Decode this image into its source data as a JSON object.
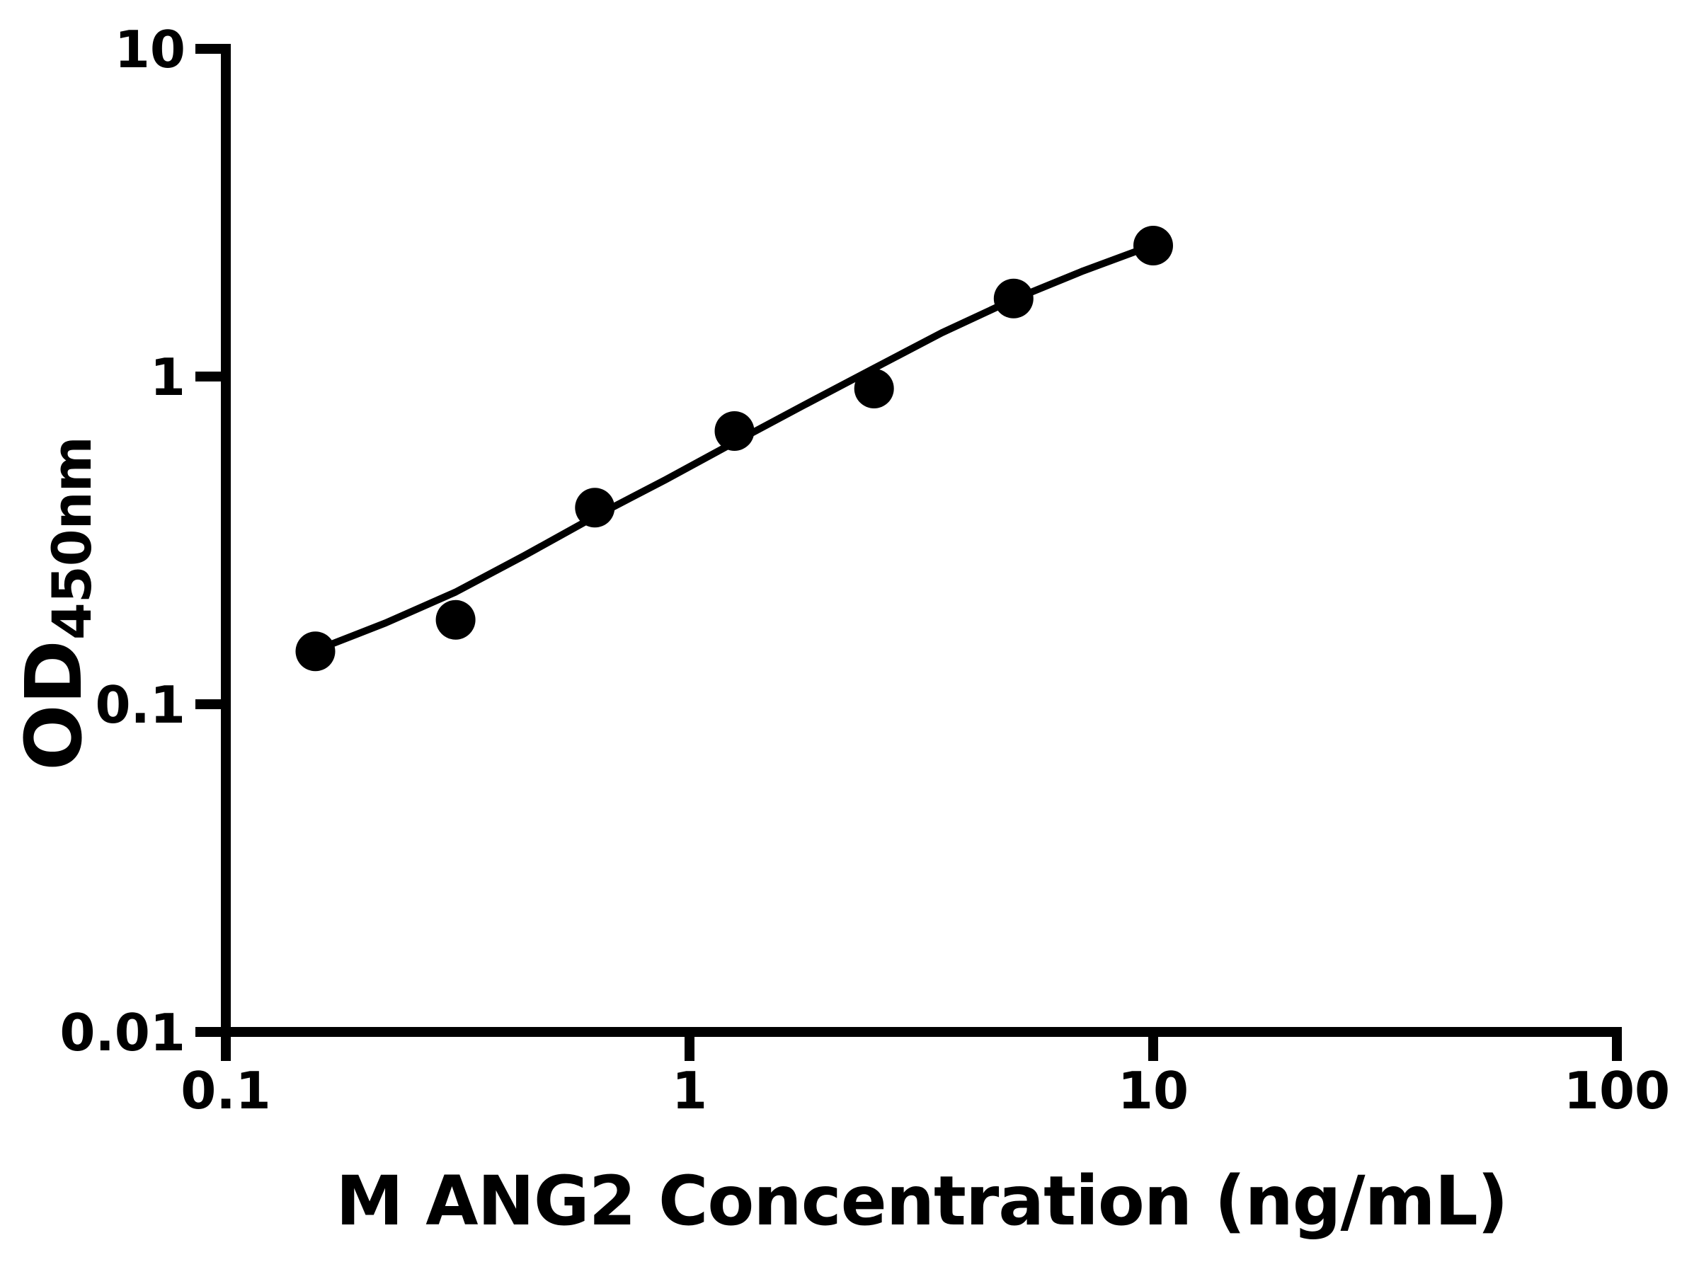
{
  "figure": {
    "background_color": "#ffffff",
    "foreground_color": "#000000"
  },
  "chart_data": {
    "type": "scatter",
    "title": "",
    "xlabel": "M ANG2 Concentration (ng/mL)",
    "ylabel": "OD450nm",
    "ylabel_parts": {
      "main": "OD",
      "subscript": "450nm"
    },
    "x_axis": {
      "scale": "log",
      "range": [
        0.1,
        100
      ],
      "ticks": [
        "0.1",
        "1",
        "10",
        "100"
      ]
    },
    "y_axis": {
      "scale": "log",
      "range": [
        0.01,
        10
      ],
      "ticks": [
        "0.01",
        "0.1",
        "1",
        "10"
      ]
    },
    "grid": false,
    "legend": false,
    "series": [
      {
        "name": "standard-data-points",
        "type": "scatter",
        "marker": "filled-circle",
        "color": "#000000",
        "points": [
          {
            "x": 0.156,
            "y": 0.145
          },
          {
            "x": 0.313,
            "y": 0.181
          },
          {
            "x": 0.625,
            "y": 0.398
          },
          {
            "x": 1.25,
            "y": 0.682
          },
          {
            "x": 2.5,
            "y": 0.919
          },
          {
            "x": 5,
            "y": 1.73
          },
          {
            "x": 10,
            "y": 2.51
          }
        ]
      },
      {
        "name": "fit-curve",
        "type": "line",
        "color": "#000000",
        "points": [
          {
            "x": 0.156,
            "y": 0.146
          },
          {
            "x": 0.221,
            "y": 0.177
          },
          {
            "x": 0.313,
            "y": 0.22
          },
          {
            "x": 0.44,
            "y": 0.284
          },
          {
            "x": 0.625,
            "y": 0.374
          },
          {
            "x": 0.887,
            "y": 0.484
          },
          {
            "x": 1.25,
            "y": 0.63
          },
          {
            "x": 1.76,
            "y": 0.816
          },
          {
            "x": 2.5,
            "y": 1.06
          },
          {
            "x": 3.5,
            "y": 1.36
          },
          {
            "x": 5,
            "y": 1.72
          },
          {
            "x": 7.06,
            "y": 2.1
          },
          {
            "x": 10,
            "y": 2.52
          }
        ]
      }
    ]
  }
}
